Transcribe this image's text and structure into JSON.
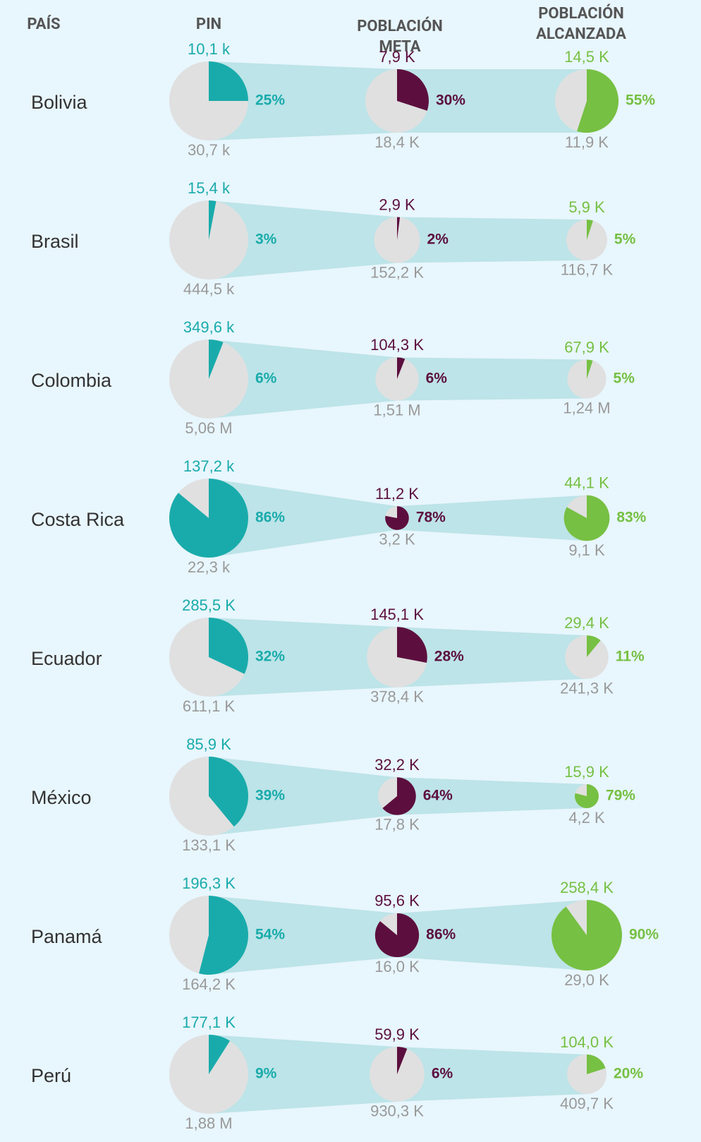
{
  "headers": [
    "PAÍS",
    "PIN",
    "POBLACIÓN META",
    "POBLACIÓN ALCANZADA"
  ],
  "colors": [
    "#19abab",
    "#5c0f3e",
    "#76c043"
  ],
  "rows": [
    {
      "country": "Bolivia",
      "pies": [
        {
          "value": 10100,
          "value_label": "10,1 k",
          "rest": 30700,
          "rest_label": "30,7 k",
          "percent": 25,
          "percent_label": "25%"
        },
        {
          "value": 7900,
          "value_label": "7,9 K",
          "rest": 18400,
          "rest_label": "18,4 K",
          "percent": 30,
          "percent_label": "30%"
        },
        {
          "value": 14500,
          "value_label": "14,5 K",
          "rest": 11900,
          "rest_label": "11,9 K",
          "percent": 55,
          "percent_label": "55%"
        }
      ]
    },
    {
      "country": "Brasil",
      "pies": [
        {
          "value": 15400,
          "value_label": "15,4 k",
          "rest": 444500,
          "rest_label": "444,5 k",
          "percent": 3,
          "percent_label": "3%"
        },
        {
          "value": 2900,
          "value_label": "2,9 K",
          "rest": 152200,
          "rest_label": "152,2 K",
          "percent": 2,
          "percent_label": "2%"
        },
        {
          "value": 5900,
          "value_label": "5,9 K",
          "rest": 116700,
          "rest_label": "116,7 K",
          "percent": 5,
          "percent_label": "5%"
        }
      ]
    },
    {
      "country": "Colombia",
      "pies": [
        {
          "value": 349600,
          "value_label": "349,6 k",
          "rest": 5060000,
          "rest_label": "5,06 M",
          "percent": 6,
          "percent_label": "6%"
        },
        {
          "value": 104300,
          "value_label": "104,3 K",
          "rest": 1510000,
          "rest_label": "1,51 M",
          "percent": 6,
          "percent_label": "6%"
        },
        {
          "value": 67900,
          "value_label": "67,9 K",
          "rest": 1240000,
          "rest_label": "1,24 M",
          "percent": 5,
          "percent_label": "5%"
        }
      ]
    },
    {
      "country": "Costa Rica",
      "pies": [
        {
          "value": 137200,
          "value_label": "137,2 k",
          "rest": 22300,
          "rest_label": "22,3 k",
          "percent": 86,
          "percent_label": "86%"
        },
        {
          "value": 11200,
          "value_label": "11,2 K",
          "rest": 3200,
          "rest_label": "3,2 K",
          "percent": 78,
          "percent_label": "78%"
        },
        {
          "value": 44100,
          "value_label": "44,1 K",
          "rest": 9100,
          "rest_label": "9,1 K",
          "percent": 83,
          "percent_label": "83%"
        }
      ]
    },
    {
      "country": "Ecuador",
      "pies": [
        {
          "value": 285500,
          "value_label": "285,5 K",
          "rest": 611100,
          "rest_label": "611,1 K",
          "percent": 32,
          "percent_label": "32%"
        },
        {
          "value": 145100,
          "value_label": "145,1 K",
          "rest": 378400,
          "rest_label": "378,4 K",
          "percent": 28,
          "percent_label": "28%"
        },
        {
          "value": 29400,
          "value_label": "29,4 K",
          "rest": 241300,
          "rest_label": "241,3 K",
          "percent": 11,
          "percent_label": "11%"
        }
      ]
    },
    {
      "country": "México",
      "pies": [
        {
          "value": 85900,
          "value_label": "85,9 K",
          "rest": 133100,
          "rest_label": "133,1 K",
          "percent": 39,
          "percent_label": "39%"
        },
        {
          "value": 32200,
          "value_label": "32,2 K",
          "rest": 17800,
          "rest_label": "17,8 K",
          "percent": 64,
          "percent_label": "64%"
        },
        {
          "value": 15900,
          "value_label": "15,9 K",
          "rest": 4200,
          "rest_label": "4,2 K",
          "percent": 79,
          "percent_label": "79%"
        }
      ]
    },
    {
      "country": "Panamá",
      "pies": [
        {
          "value": 196300,
          "value_label": "196,3 K",
          "rest": 164200,
          "rest_label": "164,2 K",
          "percent": 54,
          "percent_label": "54%"
        },
        {
          "value": 95600,
          "value_label": "95,6 K",
          "rest": 16000,
          "rest_label": "16,0 K",
          "percent": 86,
          "percent_label": "86%"
        },
        {
          "value": 258400,
          "value_label": "258,4 K",
          "rest": 29000,
          "rest_label": "29,0 K",
          "percent": 90,
          "percent_label": "90%"
        }
      ]
    },
    {
      "country": "Perú",
      "pies": [
        {
          "value": 177100,
          "value_label": "177,1 K",
          "rest": 1880000,
          "rest_label": "1,88 M",
          "percent": 9,
          "percent_label": "9%"
        },
        {
          "value": 59900,
          "value_label": "59,9 K",
          "rest": 930300,
          "rest_label": "930,3 K",
          "percent": 6,
          "percent_label": "6%"
        },
        {
          "value": 104000,
          "value_label": "104,0 K",
          "rest": 409700,
          "rest_label": "409,7 K",
          "percent": 20,
          "percent_label": "20%"
        }
      ]
    }
  ]
}
